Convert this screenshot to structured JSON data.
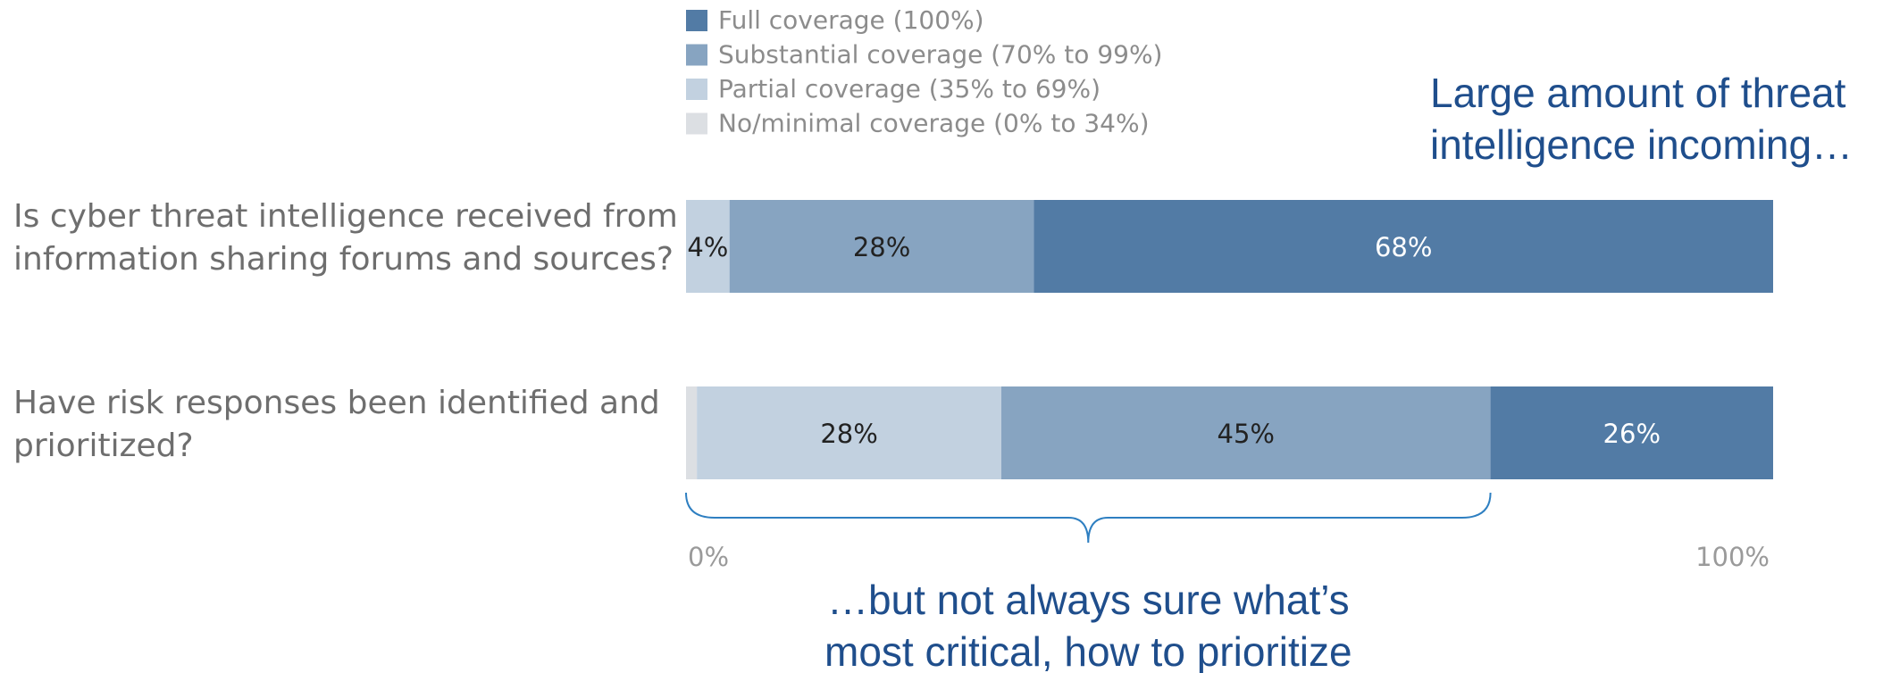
{
  "chart_data": {
    "type": "bar",
    "orientation": "horizontal",
    "stacked": true,
    "legend_position": "top",
    "grid": false,
    "xlim": [
      0,
      100
    ],
    "x_ticks": [
      {
        "value": 0,
        "label": "0%"
      },
      {
        "value": 100,
        "label": "100%"
      }
    ],
    "categories": [
      [
        "Is cyber threat intelligence received from",
        "information sharing forums and sources?"
      ],
      [
        "Have risk responses been identified and",
        "prioritized?"
      ]
    ],
    "series": [
      {
        "name": "No/minimal coverage (0% to 34%)",
        "color": "#dcdfe3",
        "label_color": "#222222",
        "values": [
          0,
          1
        ]
      },
      {
        "name": "Partial coverage (35% to 69%)",
        "color": "#c2d1e0",
        "label_color": "#222222",
        "values": [
          4,
          28
        ]
      },
      {
        "name": "Substantial coverage (70% to 99%)",
        "color": "#87a4c1",
        "label_color": "#222222",
        "values": [
          28,
          45
        ]
      },
      {
        "name": "Full coverage (100%)",
        "color": "#527ba5",
        "label_color": "#ffffff",
        "values": [
          68,
          26
        ]
      }
    ],
    "legend_order": [
      3,
      2,
      1,
      0
    ],
    "data_labels": [
      [
        null,
        "4%",
        "28%",
        "68%"
      ],
      [
        null,
        "28%",
        "45%",
        "26%"
      ]
    ],
    "annotations": [
      {
        "text": [
          "Large amount of threat",
          "intelligence incoming…"
        ]
      },
      {
        "text": [
          "…but not always sure what’s",
          "most critical, how to prioritize"
        ],
        "brace_range": [
          0,
          74
        ]
      }
    ],
    "colors": {
      "callout": "#1f4e8c",
      "brace": "#2e7fc1",
      "question_text": "#6e6e6e",
      "legend_text": "#8c8c8c",
      "tick_text": "#9a9a9a"
    }
  }
}
